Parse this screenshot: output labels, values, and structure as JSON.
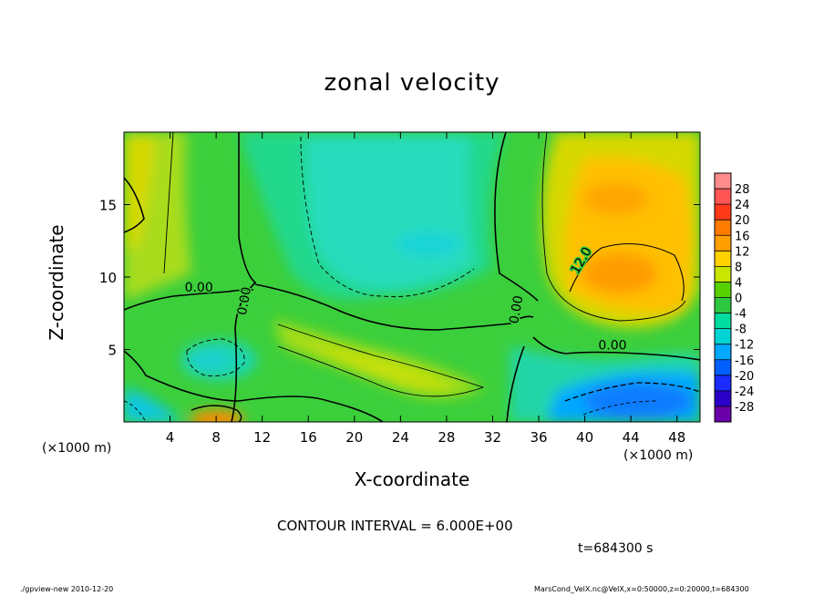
{
  "chart_data": {
    "type": "heatmap",
    "title": "zonal velocity",
    "xlabel": "X-coordinate",
    "ylabel": "Z-coordinate",
    "x_unit_note": "(×1000 m)",
    "xlim": [
      0,
      50
    ],
    "ylim": [
      0,
      20
    ],
    "x_ticks": [
      4,
      8,
      12,
      16,
      20,
      24,
      28,
      32,
      36,
      40,
      44,
      48
    ],
    "y_ticks": [
      5,
      10,
      15
    ],
    "colorbar_levels": [
      28,
      24,
      20,
      16,
      12,
      8,
      4,
      0,
      -4,
      -8,
      -12,
      -16,
      -20,
      -24,
      -28
    ],
    "colorbar_colors": [
      "#ff8c8c",
      "#ff5555",
      "#ff3a1a",
      "#ff7a00",
      "#ffa000",
      "#ffd200",
      "#c8e600",
      "#58d000",
      "#2ec840",
      "#00dca0",
      "#00d4d4",
      "#00a8ff",
      "#0060ff",
      "#1a2cff",
      "#2a00c8",
      "#6a00a8"
    ],
    "contour_labels": [
      {
        "text": "0.00",
        "x": 6.5,
        "y": 9.0
      },
      {
        "text": "0.00",
        "x": 10.8,
        "y": 8.3
      },
      {
        "text": "0.00",
        "x": 34.4,
        "y": 7.7
      },
      {
        "text": "0.00",
        "x": 42.4,
        "y": 5.0
      },
      {
        "text": "12.0",
        "x": 40.0,
        "y": 11.0
      }
    ],
    "contour_interval": "CONTOUR INTERVAL = 6.000E+00",
    "time_label": "t=684300 s"
  },
  "footer": {
    "left": "./gpview-new  2010-12-20",
    "right": "MarsCond_VelX.nc@VelX,x=0:50000,z=0:20000,t=684300"
  }
}
